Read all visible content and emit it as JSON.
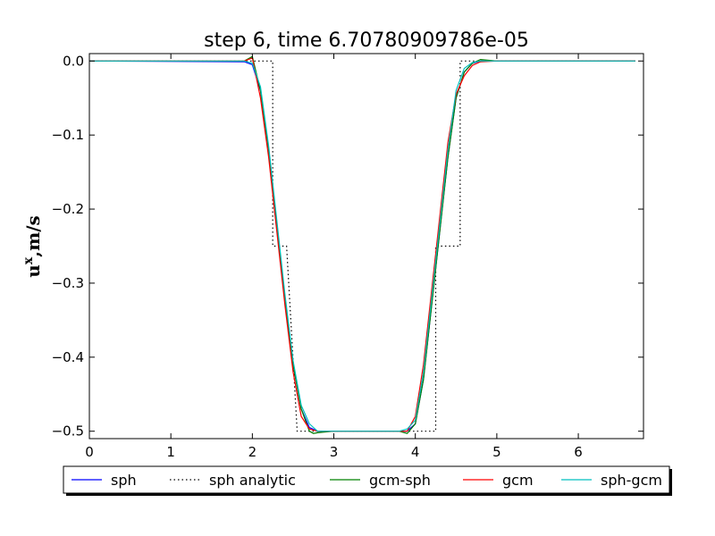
{
  "chart_data": {
    "type": "line",
    "title": "step 6, time 6.70780909786e-05",
    "xlabel": "",
    "ylabel_main": "u",
    "ylabel_sup": "x",
    "ylabel_rest": ",m/s",
    "xlim": [
      0,
      6.8
    ],
    "ylim": [
      -0.51,
      0.01
    ],
    "xticks": [
      0,
      1,
      2,
      3,
      4,
      5,
      6
    ],
    "xtick_labels": [
      "0",
      "1",
      "2",
      "3",
      "4",
      "5",
      "6"
    ],
    "yticks": [
      0.0,
      -0.1,
      -0.2,
      -0.3,
      -0.4,
      -0.5
    ],
    "ytick_labels": [
      "0.0",
      "−0.1",
      "−0.2",
      "−0.3",
      "−0.4",
      "−0.5"
    ],
    "grid": false,
    "legend_position": "bottom-outside",
    "series": [
      {
        "name": "sph",
        "color": "#0000ff",
        "style": "solid",
        "x": [
          0,
          1.9,
          2.0,
          2.1,
          2.2,
          2.3,
          2.4,
          2.5,
          2.6,
          2.7,
          2.8,
          2.9,
          3.0,
          3.5,
          3.8,
          3.9,
          4.0,
          4.1,
          4.2,
          4.3,
          4.4,
          4.5,
          4.6,
          4.7,
          4.8,
          5.0,
          6.7
        ],
        "y": [
          0,
          -0.001,
          -0.005,
          -0.04,
          -0.12,
          -0.22,
          -0.32,
          -0.41,
          -0.47,
          -0.495,
          -0.5,
          -0.5,
          -0.5,
          -0.5,
          -0.5,
          -0.5,
          -0.49,
          -0.43,
          -0.33,
          -0.23,
          -0.13,
          -0.05,
          -0.015,
          -0.003,
          0.0,
          0.0,
          0.0
        ]
      },
      {
        "name": "sph analytic",
        "color": "#000000",
        "style": "dotted",
        "x": [
          0,
          2.25,
          2.25,
          2.42,
          2.42,
          2.55,
          2.55,
          3.0,
          4.25,
          4.25,
          4.38,
          4.38,
          4.55,
          4.55,
          6.7
        ],
        "y": [
          0,
          0,
          -0.25,
          -0.25,
          -0.25,
          -0.5,
          -0.5,
          -0.5,
          -0.5,
          -0.25,
          -0.25,
          -0.25,
          -0.25,
          0,
          0
        ]
      },
      {
        "name": "gcm-sph",
        "color": "#008000",
        "style": "solid",
        "x": [
          0,
          1.9,
          2.0,
          2.1,
          2.2,
          2.3,
          2.4,
          2.5,
          2.6,
          2.7,
          2.75,
          2.8,
          3.0,
          3.5,
          3.8,
          3.9,
          4.0,
          4.1,
          4.2,
          4.3,
          4.4,
          4.5,
          4.6,
          4.7,
          4.8,
          5.0,
          6.7
        ],
        "y": [
          0,
          0.0,
          0.006,
          -0.04,
          -0.12,
          -0.22,
          -0.32,
          -0.41,
          -0.47,
          -0.5,
          -0.503,
          -0.502,
          -0.5,
          -0.5,
          -0.5,
          -0.503,
          -0.49,
          -0.43,
          -0.33,
          -0.23,
          -0.13,
          -0.05,
          -0.015,
          -0.003,
          0.002,
          0.0,
          0.0
        ]
      },
      {
        "name": "gcm",
        "color": "#ff0000",
        "style": "solid",
        "x": [
          0,
          1.9,
          2.0,
          2.1,
          2.2,
          2.3,
          2.4,
          2.5,
          2.6,
          2.7,
          2.8,
          2.9,
          3.0,
          3.5,
          3.8,
          3.9,
          4.0,
          4.1,
          4.2,
          4.3,
          4.4,
          4.5,
          4.6,
          4.7,
          4.8,
          5.0,
          6.7
        ],
        "y": [
          0,
          0.0,
          0.004,
          -0.05,
          -0.13,
          -0.23,
          -0.33,
          -0.42,
          -0.48,
          -0.497,
          -0.5,
          -0.5,
          -0.5,
          -0.5,
          -0.5,
          -0.5,
          -0.48,
          -0.41,
          -0.31,
          -0.21,
          -0.11,
          -0.045,
          -0.02,
          -0.006,
          -0.001,
          0.0,
          0.0
        ]
      },
      {
        "name": "sph-gcm",
        "color": "#00bfbf",
        "style": "solid",
        "x": [
          0,
          1.9,
          2.0,
          2.1,
          2.2,
          2.3,
          2.4,
          2.5,
          2.6,
          2.7,
          2.8,
          2.9,
          3.0,
          3.5,
          3.8,
          3.9,
          4.0,
          4.1,
          4.2,
          4.3,
          4.4,
          4.5,
          4.6,
          4.7,
          4.8,
          5.0,
          6.7
        ],
        "y": [
          0,
          0.0,
          -0.003,
          -0.035,
          -0.115,
          -0.215,
          -0.315,
          -0.405,
          -0.465,
          -0.49,
          -0.5,
          -0.5,
          -0.5,
          -0.5,
          -0.5,
          -0.497,
          -0.485,
          -0.42,
          -0.32,
          -0.22,
          -0.12,
          -0.04,
          -0.01,
          -0.002,
          0.0,
          0.0,
          0.0
        ]
      }
    ]
  }
}
